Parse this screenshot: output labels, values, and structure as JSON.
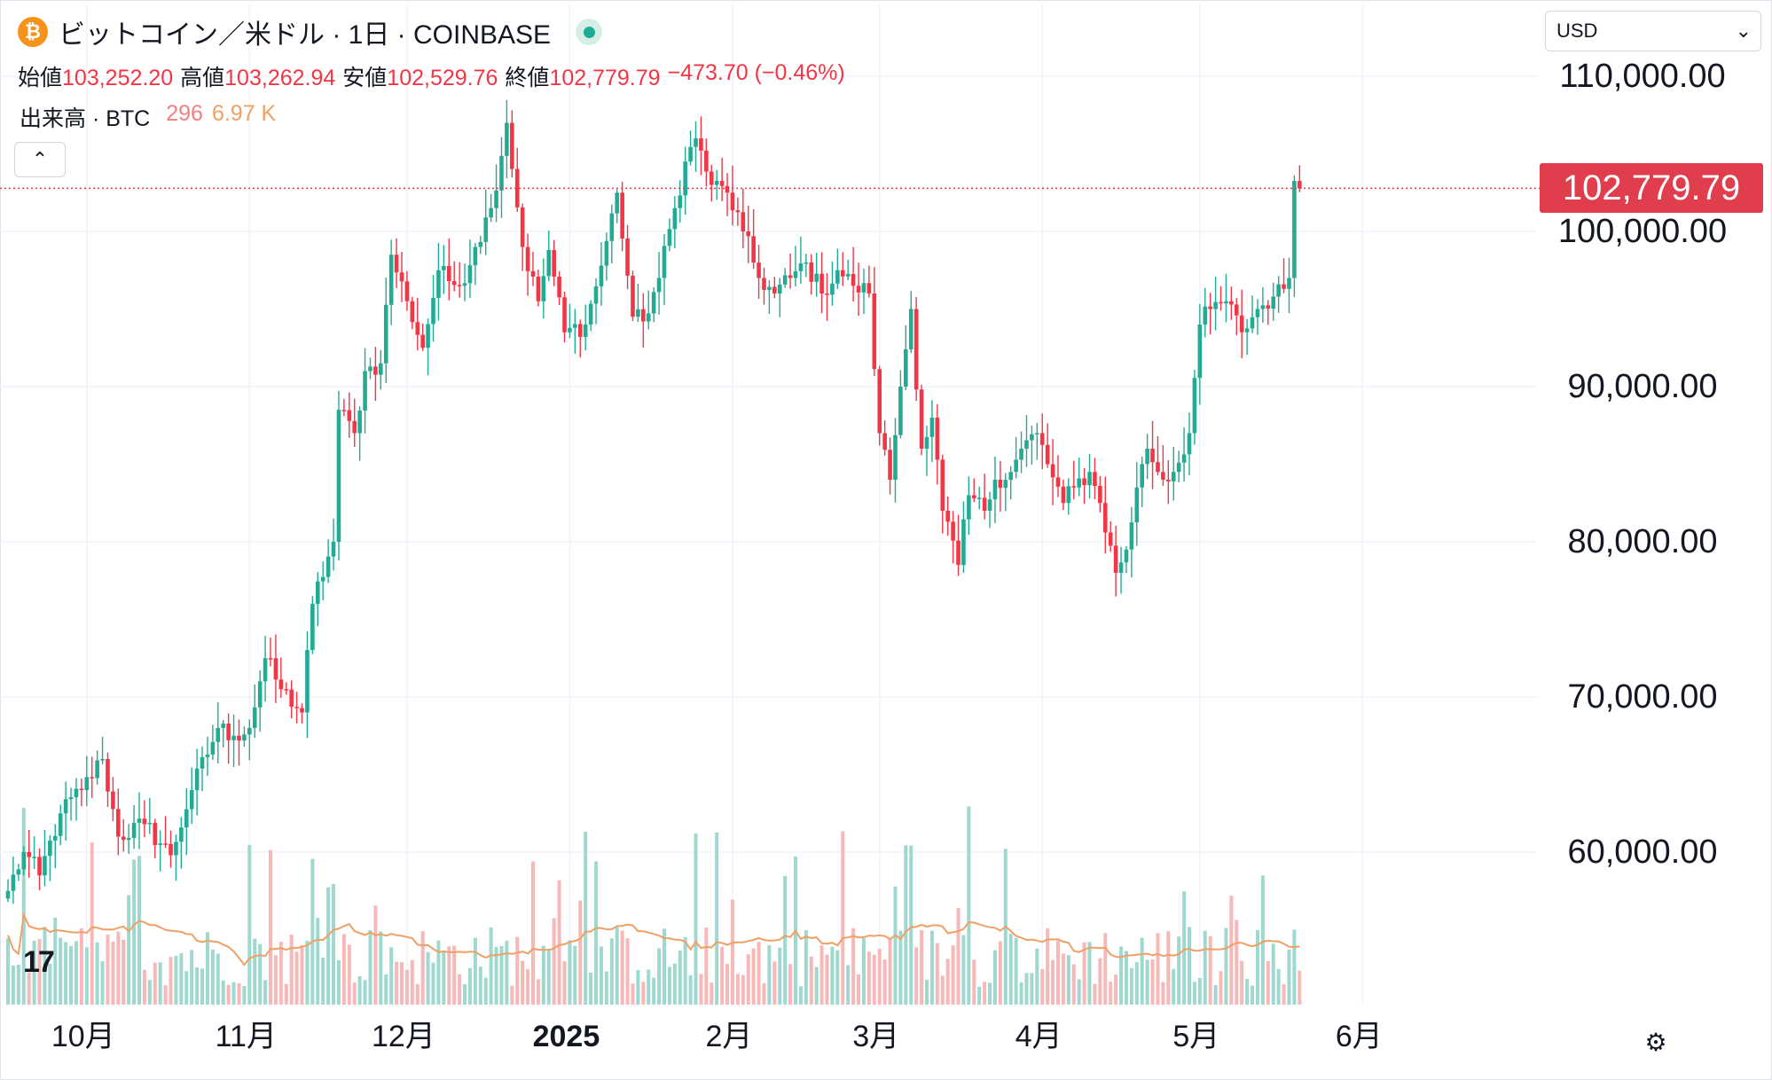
{
  "header": {
    "symbol_title": "ビットコイン／米ドル · 1日 · COINBASE",
    "logo_glyph": "₿",
    "ohlc": [
      {
        "label": "始値",
        "value": "103,252.20"
      },
      {
        "label": "高値",
        "value": "103,262.94"
      },
      {
        "label": "安値",
        "value": "102,529.76"
      },
      {
        "label": "終値",
        "value": "102,779.79"
      }
    ],
    "change": "−473.70 (−0.46%)",
    "volume_label": "出来高 · BTC",
    "volume_value": "296",
    "volume_ma": "6.97 K",
    "collapse_glyph": "⌃"
  },
  "currency": {
    "value": "USD",
    "chevron": "⌄"
  },
  "last_price_label": "102,779.79",
  "tv_logo": "17",
  "settings_glyph": "⚙",
  "colors": {
    "up": "#22ab94",
    "down": "#f23645",
    "up_vol": "#9fd8cf",
    "down_vol": "#f7b8b8",
    "ma": "#f0a064",
    "grid": "#f0f3fa",
    "price_line": "#f23645"
  },
  "chart_data": {
    "type": "candlestick",
    "title": "ビットコイン／米ドル · 1日 · COINBASE",
    "x_labels": [
      {
        "index": 15,
        "label": "10月"
      },
      {
        "index": 46,
        "label": "11月"
      },
      {
        "index": 76,
        "label": "12月"
      },
      {
        "index": 107,
        "label": "2025"
      },
      {
        "index": 138,
        "label": "2月"
      },
      {
        "index": 166,
        "label": "3月"
      },
      {
        "index": 197,
        "label": "4月"
      },
      {
        "index": 227,
        "label": "5月"
      },
      {
        "index": 258,
        "label": "6月"
      }
    ],
    "y_ticks": [
      60000,
      70000,
      80000,
      90000,
      100000,
      110000
    ],
    "y_tick_labels": [
      "60,000.00",
      "70,000.00",
      "80,000.00",
      "90,000.00",
      "100,000.00",
      "110,000.00"
    ],
    "ylim": [
      53000,
      114500
    ],
    "last_close": 102779.79,
    "close_anchors": [
      [
        0,
        57500
      ],
      [
        3,
        60000
      ],
      [
        6,
        58500
      ],
      [
        10,
        62500
      ],
      [
        14,
        64000
      ],
      [
        18,
        66000
      ],
      [
        21,
        61000
      ],
      [
        26,
        61800
      ],
      [
        31,
        59800
      ],
      [
        35,
        64000
      ],
      [
        40,
        68000
      ],
      [
        43,
        67500
      ],
      [
        46,
        68000
      ],
      [
        49,
        72500
      ],
      [
        52,
        70500
      ],
      [
        56,
        69000
      ],
      [
        58,
        76000
      ],
      [
        62,
        80000
      ],
      [
        63,
        88500
      ],
      [
        66,
        87000
      ],
      [
        68,
        91000
      ],
      [
        71,
        91500
      ],
      [
        73,
        98500
      ],
      [
        76,
        95500
      ],
      [
        79,
        92500
      ],
      [
        82,
        97500
      ],
      [
        84,
        96800
      ],
      [
        86,
        96500
      ],
      [
        89,
        99000
      ],
      [
        92,
        101500
      ],
      [
        95,
        107000
      ],
      [
        98,
        99000
      ],
      [
        101,
        95500
      ],
      [
        103,
        98800
      ],
      [
        106,
        93500
      ],
      [
        110,
        94000
      ],
      [
        113,
        97800
      ],
      [
        116,
        102500
      ],
      [
        119,
        94500
      ],
      [
        121,
        94200
      ],
      [
        124,
        97000
      ],
      [
        127,
        101500
      ],
      [
        129,
        104500
      ],
      [
        131,
        106000
      ],
      [
        134,
        103000
      ],
      [
        137,
        102500
      ],
      [
        140,
        100000
      ],
      [
        143,
        97000
      ],
      [
        146,
        96000
      ],
      [
        149,
        97000
      ],
      [
        152,
        98000
      ],
      [
        155,
        96000
      ],
      [
        158,
        97500
      ],
      [
        161,
        96500
      ],
      [
        164,
        96000
      ],
      [
        166,
        87000
      ],
      [
        168,
        84000
      ],
      [
        170,
        90000
      ],
      [
        172,
        95000
      ],
      [
        174,
        86000
      ],
      [
        176,
        88000
      ],
      [
        178,
        82000
      ],
      [
        181,
        78500
      ],
      [
        183,
        83000
      ],
      [
        186,
        82000
      ],
      [
        188,
        84000
      ],
      [
        191,
        84500
      ],
      [
        193,
        86000
      ],
      [
        196,
        87000
      ],
      [
        198,
        85000
      ],
      [
        201,
        82500
      ],
      [
        203,
        83500
      ],
      [
        206,
        84500
      ],
      [
        208,
        82500
      ],
      [
        211,
        78000
      ],
      [
        213,
        79500
      ],
      [
        215,
        83500
      ],
      [
        217,
        86000
      ],
      [
        220,
        84000
      ],
      [
        222,
        84500
      ],
      [
        225,
        87000
      ],
      [
        227,
        94000
      ],
      [
        229,
        95000
      ],
      [
        232,
        95500
      ],
      [
        235,
        93500
      ],
      [
        238,
        95000
      ],
      [
        241,
        95800
      ],
      [
        243,
        96300
      ],
      [
        244,
        97000
      ],
      [
        245,
        103252.2
      ],
      [
        246,
        102779.79
      ]
    ],
    "moving_average_label": "6.97 K",
    "xlabel": "",
    "ylabel": "",
    "grid": true,
    "currency": "USD"
  }
}
